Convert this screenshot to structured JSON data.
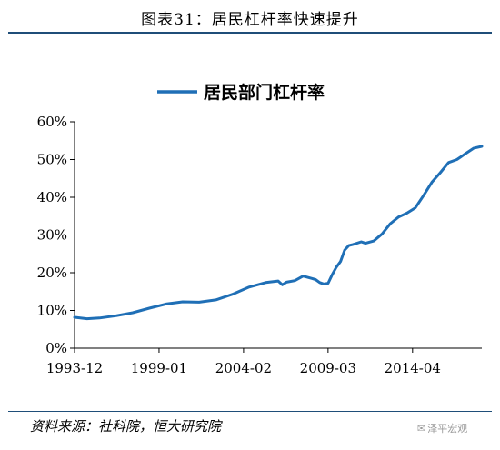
{
  "header": {
    "figure_title": "图表31：居民杠杆率快速提升"
  },
  "footer": {
    "source": "资料来源：社科院，恒大研究院",
    "watermark": "泽平宏观"
  },
  "colors": {
    "series": "#1f6fb6",
    "rule": "#1f4e79"
  },
  "chart_data": {
    "type": "line",
    "title": "",
    "xlabel": "",
    "ylabel": "",
    "ylim": [
      0,
      60
    ],
    "yticks": [
      0,
      10,
      20,
      30,
      40,
      50,
      60
    ],
    "ytick_labels": [
      "0%",
      "10%",
      "20%",
      "30%",
      "40%",
      "50%",
      "60%"
    ],
    "xlim": [
      "1993-12",
      "2018-06"
    ],
    "xticks": [
      "1993-12",
      "1999-01",
      "2004-02",
      "2009-03",
      "2014-04"
    ],
    "legend": "top-center",
    "grid": false,
    "series": [
      {
        "name": "居民部门杠杆率",
        "color": "#1f6fb6",
        "x": [
          "1993-12",
          "1994-09",
          "1995-06",
          "1996-06",
          "1997-06",
          "1998-06",
          "1999-06",
          "2000-06",
          "2001-06",
          "2002-06",
          "2003-06",
          "2004-06",
          "2005-06",
          "2006-03",
          "2006-06",
          "2006-09",
          "2007-03",
          "2007-06",
          "2007-09",
          "2008-03",
          "2008-06",
          "2008-09",
          "2008-12",
          "2009-03",
          "2009-06",
          "2009-09",
          "2009-12",
          "2010-03",
          "2010-06",
          "2010-09",
          "2011-03",
          "2011-06",
          "2011-12",
          "2012-06",
          "2012-12",
          "2013-06",
          "2013-12",
          "2014-06",
          "2014-12",
          "2015-06",
          "2015-12",
          "2016-06",
          "2016-12",
          "2017-06",
          "2017-12",
          "2018-06"
        ],
        "values": [
          8.2,
          7.8,
          8.0,
          8.6,
          9.4,
          10.6,
          11.7,
          12.3,
          12.2,
          12.8,
          14.3,
          16.2,
          17.4,
          17.8,
          16.8,
          17.5,
          17.9,
          18.5,
          19.1,
          18.5,
          18.2,
          17.4,
          17.0,
          17.2,
          19.5,
          21.5,
          23.0,
          26.0,
          27.2,
          27.5,
          28.2,
          27.8,
          28.4,
          30.3,
          33.0,
          34.8,
          35.8,
          37.2,
          40.5,
          44.0,
          46.5,
          49.2,
          50.0,
          51.5,
          53.0,
          53.5
        ]
      }
    ]
  }
}
